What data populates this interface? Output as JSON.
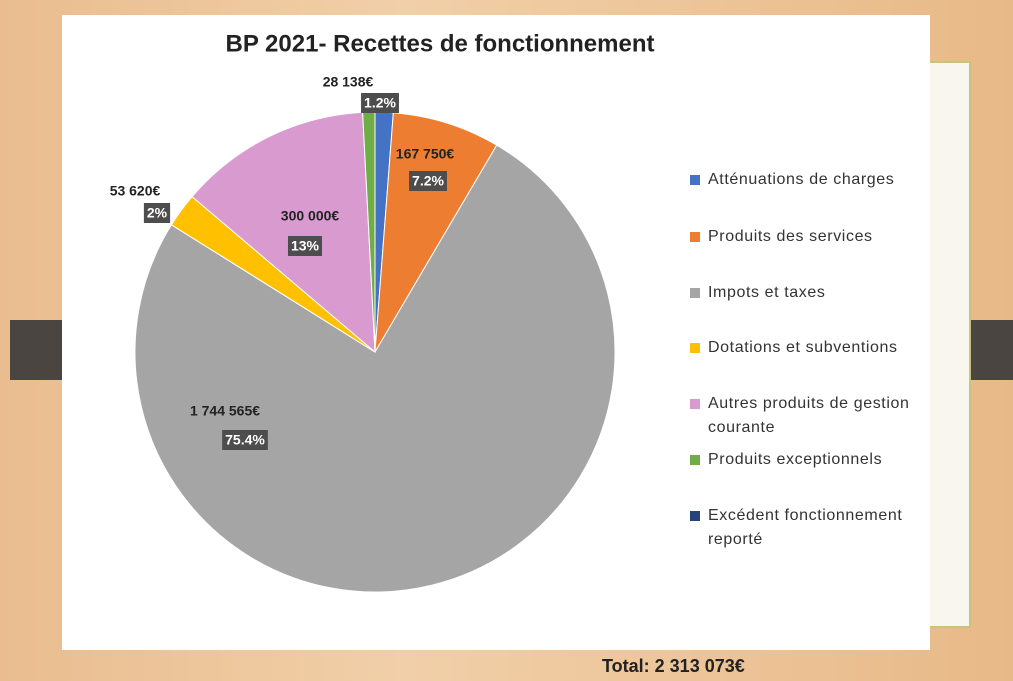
{
  "chart_data": {
    "type": "pie",
    "title": "BP 2021- Recettes de fonctionnement",
    "categories": [
      "Atténuations de charges",
      "Produits des services",
      "Impots et taxes",
      "Dotations et subventions",
      "Autres produits de gestion courante",
      "Produits exceptionnels",
      "Excédent fonctionnement reporté"
    ],
    "values": [
      28138,
      167750,
      1744565,
      53620,
      300000,
      19000,
      0
    ],
    "value_labels": [
      "28 138€",
      "167 750€",
      "1 744 565€",
      "53 620€",
      "300 000€",
      null,
      null
    ],
    "percent_labels": [
      "1.2%",
      "7.2%",
      "75.4%",
      "2%",
      "13%",
      null,
      null
    ],
    "colors": [
      "#4472c4",
      "#ed7d31",
      "#a5a5a5",
      "#ffc000",
      "#d99ad0",
      "#70ad47",
      "#264478"
    ],
    "legend": "right",
    "total_label": "Total: 2 313 073€"
  }
}
